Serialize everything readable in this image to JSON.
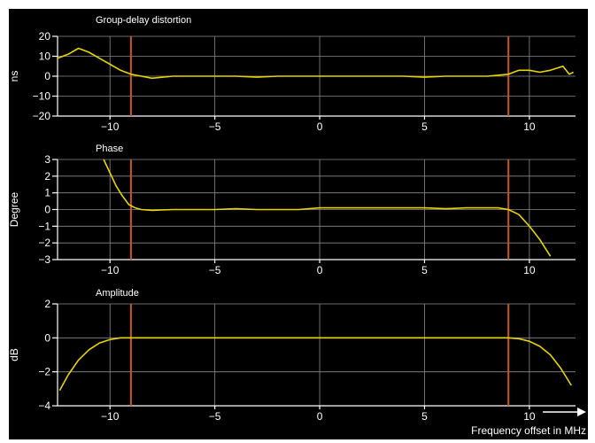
{
  "colors": {
    "background": "#000000",
    "trace": "#e8d400",
    "marker": "#c8561e",
    "grid": "#8a8a8a",
    "text": "#ffffff"
  },
  "chart_data": [
    {
      "type": "line",
      "title": "Group-delay distortion",
      "ylabel": "ns",
      "xlabel": "",
      "xlim": [
        -12.5,
        12.2
      ],
      "ylim": [
        -20,
        20
      ],
      "xticks": [
        -10,
        -5,
        0,
        5,
        10
      ],
      "xticklabels": [
        "−10",
        "−5",
        "0",
        "5",
        "10"
      ],
      "yticks": [
        20,
        10,
        0,
        -10,
        -20
      ],
      "yticklabels": [
        "20",
        "10",
        "0",
        "−10",
        "−20"
      ],
      "markers": [
        -9,
        9
      ],
      "grid": true,
      "series": [
        {
          "x": [
            -12.5,
            -12.0,
            -11.5,
            -11.0,
            -10.5,
            -10.0,
            -9.5,
            -9.0,
            -8.5,
            -8.0,
            -7.0,
            -6.0,
            -5.0,
            -4.0,
            -3.0,
            -2.0,
            -1.0,
            0.0,
            1.0,
            2.0,
            3.0,
            4.0,
            5.0,
            6.0,
            7.0,
            8.0,
            8.5,
            9.0,
            9.5,
            10.0,
            10.5,
            11.0,
            11.3,
            11.6,
            11.9,
            12.1
          ],
          "y": [
            9,
            11,
            14,
            12,
            9,
            6,
            3,
            1,
            0,
            -1,
            0,
            0,
            0,
            0,
            -0.5,
            0,
            0,
            0,
            0,
            0,
            0,
            0,
            -0.5,
            0,
            0,
            0,
            0.5,
            1,
            3,
            3,
            2,
            3,
            4,
            5,
            1,
            2
          ]
        }
      ]
    },
    {
      "type": "line",
      "title": "Phase",
      "ylabel": "Degree",
      "xlabel": "",
      "xlim": [
        -12.5,
        12.2
      ],
      "ylim": [
        -3,
        3
      ],
      "xticks": [
        -10,
        -5,
        0,
        5,
        10
      ],
      "xticklabels": [
        "−10",
        "−5",
        "0",
        "5",
        "10"
      ],
      "yticks": [
        3,
        2,
        1,
        0,
        -1,
        -2,
        -3
      ],
      "yticklabels": [
        "3",
        "2",
        "1",
        "0",
        "−1",
        "−2",
        "−3"
      ],
      "markers": [
        -9,
        9
      ],
      "grid": true,
      "series": [
        {
          "x": [
            -10.3,
            -10.0,
            -9.7,
            -9.4,
            -9.1,
            -8.8,
            -8.5,
            -8.0,
            -7.0,
            -6.0,
            -5.0,
            -4.0,
            -3.0,
            -2.0,
            -1.0,
            0.0,
            1.0,
            2.0,
            3.0,
            4.0,
            5.0,
            6.0,
            7.0,
            8.0,
            8.5,
            9.0,
            9.5,
            10.0,
            10.5,
            11.0
          ],
          "y": [
            3,
            2.2,
            1.4,
            0.8,
            0.3,
            0.1,
            0,
            -0.05,
            0,
            0,
            0,
            0.05,
            0,
            0,
            0,
            0.1,
            0.1,
            0.1,
            0.1,
            0.1,
            0.1,
            0.05,
            0.1,
            0.1,
            0.1,
            0,
            -0.3,
            -1.0,
            -1.8,
            -2.8
          ]
        }
      ]
    },
    {
      "type": "line",
      "title": "Amplitude",
      "ylabel": "dB",
      "xlabel": "Frequency offset in MHz",
      "xlim": [
        -12.5,
        12.2
      ],
      "ylim": [
        -4,
        2
      ],
      "xticks": [
        -10,
        -5,
        0,
        5,
        10
      ],
      "xticklabels": [
        "−10",
        "−5",
        "0",
        "5",
        "10"
      ],
      "yticks": [
        2,
        0,
        -2,
        -4
      ],
      "yticklabels": [
        "2",
        "0",
        "−2",
        "−4"
      ],
      "markers": [
        -9,
        9
      ],
      "grid": true,
      "series": [
        {
          "x": [
            -12.4,
            -12.0,
            -11.5,
            -11.0,
            -10.5,
            -10.0,
            -9.5,
            -9.0,
            -8.0,
            -6.0,
            -4.0,
            -2.0,
            0.0,
            2.0,
            4.0,
            6.0,
            8.0,
            9.0,
            9.5,
            10.0,
            10.5,
            11.0,
            11.5,
            12.0
          ],
          "y": [
            -3.1,
            -2.2,
            -1.3,
            -0.7,
            -0.3,
            -0.1,
            0,
            0,
            0,
            0,
            0,
            0,
            0,
            0,
            0,
            0,
            0,
            0,
            -0.05,
            -0.2,
            -0.5,
            -1.0,
            -1.8,
            -2.8
          ]
        }
      ]
    }
  ]
}
